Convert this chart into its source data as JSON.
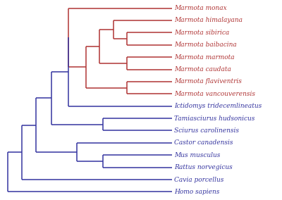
{
  "taxa": [
    "Marmota monax",
    "Marmota himalayana",
    "Marmota sibirica",
    "Marmota baibacina",
    "Marmota marmota",
    "Marmota caudata",
    "Marmota flaviventris",
    "Marmota vancouverensis",
    "Ictidomys tridecemlineatus",
    "Tamiasciurus hudsonicus",
    "Sciurus carolinensis",
    "Castor canadensis",
    "Mus musculus",
    "Rattus norvegicus",
    "Cavia porcellus",
    "Homo sapiens"
  ],
  "red_color": "#b03535",
  "blue_color": "#3535a0",
  "bg_color": "#ffffff",
  "lw": 1.1,
  "fontsize": 6.5
}
